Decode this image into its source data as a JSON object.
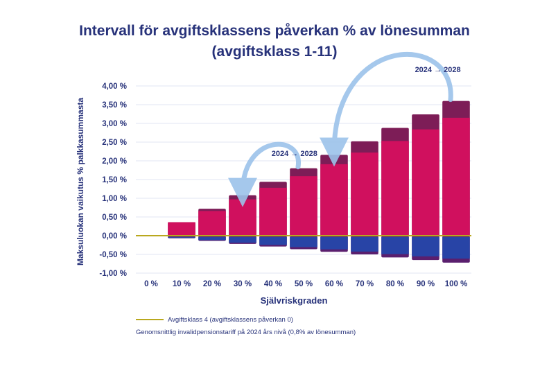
{
  "title_line1": "Intervall för avgiftsklassens påverkan % av lönesumman",
  "title_line2": "(avgiftsklass 1-11)",
  "chart_data": {
    "type": "bar",
    "xlabel": "Självriskgraden",
    "ylabel": "Maksuluokan vaikutus % palkkasummasta",
    "categories": [
      "0 %",
      "10 %",
      "20 %",
      "30 %",
      "40 %",
      "50 %",
      "60 %",
      "70 %",
      "80 %",
      "90 %",
      "100 %"
    ],
    "ylim": [
      -1.0,
      4.0
    ],
    "yticks": [
      -1.0,
      -0.5,
      0.0,
      0.5,
      1.0,
      1.5,
      2.0,
      2.5,
      3.0,
      3.5,
      4.0
    ],
    "ytick_labels": [
      "-1,00 %",
      "-0,50 %",
      "0,00 %",
      "0,50 %",
      "1,00 %",
      "1,50 %",
      "2,00 %",
      "2,50 %",
      "3,00 %",
      "3,50 %",
      "4,00 %"
    ],
    "series": [
      {
        "values": [
          0,
          0.36,
          0.72,
          1.08,
          1.44,
          1.8,
          2.16,
          2.52,
          2.88,
          3.24,
          3.6
        ]
      },
      {
        "values": [
          0,
          -0.07,
          -0.14,
          -0.22,
          -0.29,
          -0.36,
          -0.43,
          -0.5,
          -0.58,
          -0.65,
          -0.72
        ]
      }
    ],
    "upper_band_2024": [
      0,
      0.36,
      0.66,
      0.97,
      1.28,
      1.59,
      1.91,
      2.22,
      2.53,
      2.84,
      3.15
    ],
    "annotations": [
      {
        "text": "2024 → 2028",
        "from_category": "50 %",
        "to_category": "30 %"
      },
      {
        "text": "2024 → 2028",
        "from_category": "100 %",
        "to_category": "60 %"
      }
    ],
    "grid": true,
    "legend_position": "bottom"
  },
  "legend": {
    "line_label": "Avgiftsklass 4 (avgiftsklassens påverkan 0)",
    "note": "Genomsnittlig invalidpensionstariff på 2024 års nivå (0,8% av lönesumman)"
  },
  "colors": {
    "title": "#27327a",
    "bar_positive": "#d0105e",
    "bar_positive_dark": "#7d1d57",
    "bar_negative": "#2844a6",
    "bar_negative_dark": "#5a1f6e",
    "zero_line": "#b9a81e",
    "arrow": "#9cc3ea"
  }
}
